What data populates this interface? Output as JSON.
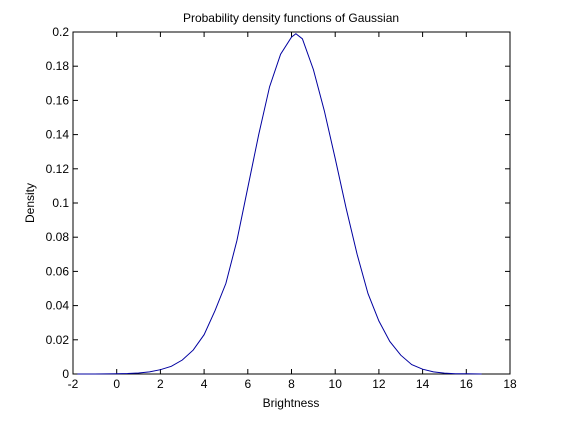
{
  "chart_data": {
    "type": "line",
    "title": "Probability density functions of Gaussian",
    "xlabel": "Brightness",
    "ylabel": "Density",
    "xlim": [
      -2,
      18
    ],
    "ylim": [
      0,
      0.2
    ],
    "xticks": [
      -2,
      0,
      2,
      4,
      6,
      8,
      10,
      12,
      14,
      16,
      18
    ],
    "xtick_labels": [
      "-2",
      "0",
      "2",
      "4",
      "6",
      "8",
      "10",
      "12",
      "14",
      "16",
      "18"
    ],
    "yticks": [
      0,
      0.02,
      0.04,
      0.06,
      0.08,
      0.1,
      0.12,
      0.14,
      0.16,
      0.18,
      0.2
    ],
    "ytick_labels": [
      "0",
      "0.02",
      "0.04",
      "0.06",
      "0.08",
      "0.1",
      "0.12",
      "0.14",
      "0.16",
      "0.18",
      "0.2"
    ],
    "grid": false,
    "line_color": "#0000a0",
    "series": [
      {
        "x": [
          -1.8,
          -1.0,
          0.0,
          0.5,
          1.0,
          1.5,
          2.0,
          2.5,
          3.0,
          3.5,
          4.0,
          4.5,
          5.0,
          5.5,
          6.0,
          6.5,
          7.0,
          7.5,
          8.0,
          8.2,
          8.5,
          9.0,
          9.5,
          10.0,
          10.5,
          11.0,
          11.5,
          12.0,
          12.5,
          13.0,
          13.5,
          14.0,
          14.5,
          15.0,
          15.5,
          16.0,
          16.7
        ],
        "y": [
          0.0,
          0.0,
          0.0002,
          0.0003,
          0.0006,
          0.0012,
          0.0025,
          0.0045,
          0.0082,
          0.014,
          0.023,
          0.037,
          0.053,
          0.078,
          0.109,
          0.14,
          0.168,
          0.187,
          0.197,
          0.199,
          0.196,
          0.178,
          0.154,
          0.126,
          0.097,
          0.07,
          0.047,
          0.031,
          0.019,
          0.011,
          0.0055,
          0.0028,
          0.0012,
          0.0005,
          0.0002,
          0.0001,
          0.0
        ]
      }
    ]
  }
}
